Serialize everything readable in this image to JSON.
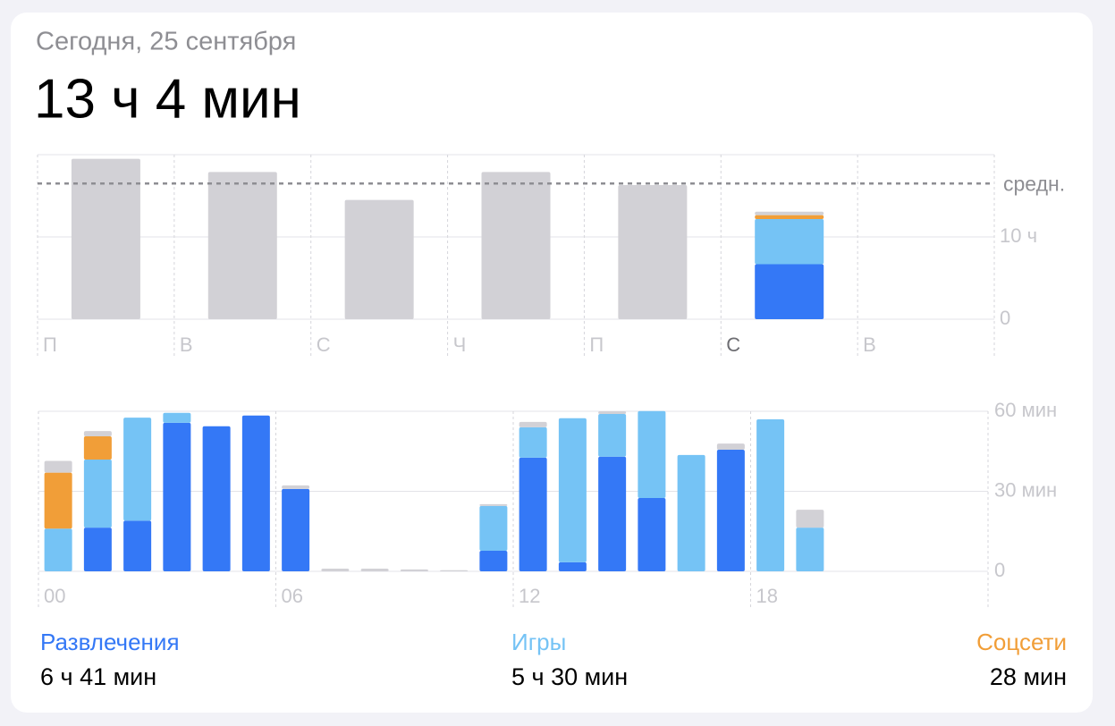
{
  "header": {
    "date": "Сегодня, 25 сентября",
    "total": "13 ч 4 мин"
  },
  "chart_data": [
    {
      "type": "bar",
      "stacked": true,
      "categories": [
        "П",
        "В",
        "С",
        "Ч",
        "П",
        "С",
        "В"
      ],
      "highlight_index": 5,
      "series": [
        {
          "color": "#3478f6",
          "values": [
            0,
            0,
            0,
            0,
            0,
            6.68,
            null
          ]
        },
        {
          "color": "#75c3f5",
          "values": [
            0,
            0,
            0,
            0,
            0,
            5.5,
            null
          ]
        },
        {
          "color": "#f19e38",
          "values": [
            0,
            0,
            0,
            0,
            0,
            0.47,
            null
          ]
        },
        {
          "color": "#d2d1d6",
          "values": [
            19.5,
            17.9,
            14.5,
            17.9,
            16.3,
            0.42,
            null
          ]
        }
      ],
      "ylim": [
        0,
        20
      ],
      "yticks": [
        0,
        {
          "value": 10,
          "label": "10 ч"
        }
      ],
      "average": 16.5,
      "average_label": "средн.",
      "grid": true
    },
    {
      "type": "bar",
      "stacked": true,
      "categories": [
        "00",
        null,
        null,
        null,
        null,
        null,
        "06",
        null,
        null,
        null,
        null,
        null,
        "12",
        null,
        null,
        null,
        null,
        null,
        "18",
        null,
        null,
        null,
        null,
        null
      ],
      "series": [
        {
          "name": "Развлечения",
          "color": "#3478f6",
          "values": [
            0,
            16.4,
            19,
            55.7,
            54.4,
            58.4,
            30.9,
            0,
            0,
            0,
            0,
            7.7,
            42.6,
            3.4,
            43,
            27.5,
            0,
            45.6,
            0,
            0,
            0,
            0,
            0,
            0
          ]
        },
        {
          "name": "Игры",
          "color": "#75c3f5",
          "values": [
            16,
            25.5,
            38.6,
            3.7,
            0,
            0,
            0,
            0,
            0,
            0,
            0,
            16.8,
            11.4,
            54,
            16,
            32.6,
            43.6,
            0,
            57,
            16.4,
            0,
            0,
            0,
            0
          ]
        },
        {
          "name": "Соцсети",
          "color": "#f19e38",
          "values": [
            21,
            8.7,
            0,
            0,
            0,
            0,
            0,
            0,
            0,
            0,
            0,
            0,
            0,
            0,
            0,
            0,
            0,
            0,
            0,
            0,
            0,
            0,
            0,
            0
          ]
        },
        {
          "color": "#d2d1d6",
          "values": [
            4.4,
            2,
            0,
            0,
            0,
            0,
            1.3,
            1,
            1,
            0.7,
            0.4,
            0.7,
            2,
            0,
            1,
            0,
            0,
            2.3,
            0,
            6.7,
            0,
            0,
            0,
            0
          ]
        }
      ],
      "ylim": [
        0,
        60
      ],
      "yticks": [
        0,
        {
          "value": 30,
          "label": "30 мин"
        },
        {
          "value": 60,
          "label": "60 мин"
        }
      ],
      "grid": true
    }
  ],
  "summary": [
    "6 ч 41 мин",
    "5 ч 30 мин",
    "28 мин"
  ]
}
